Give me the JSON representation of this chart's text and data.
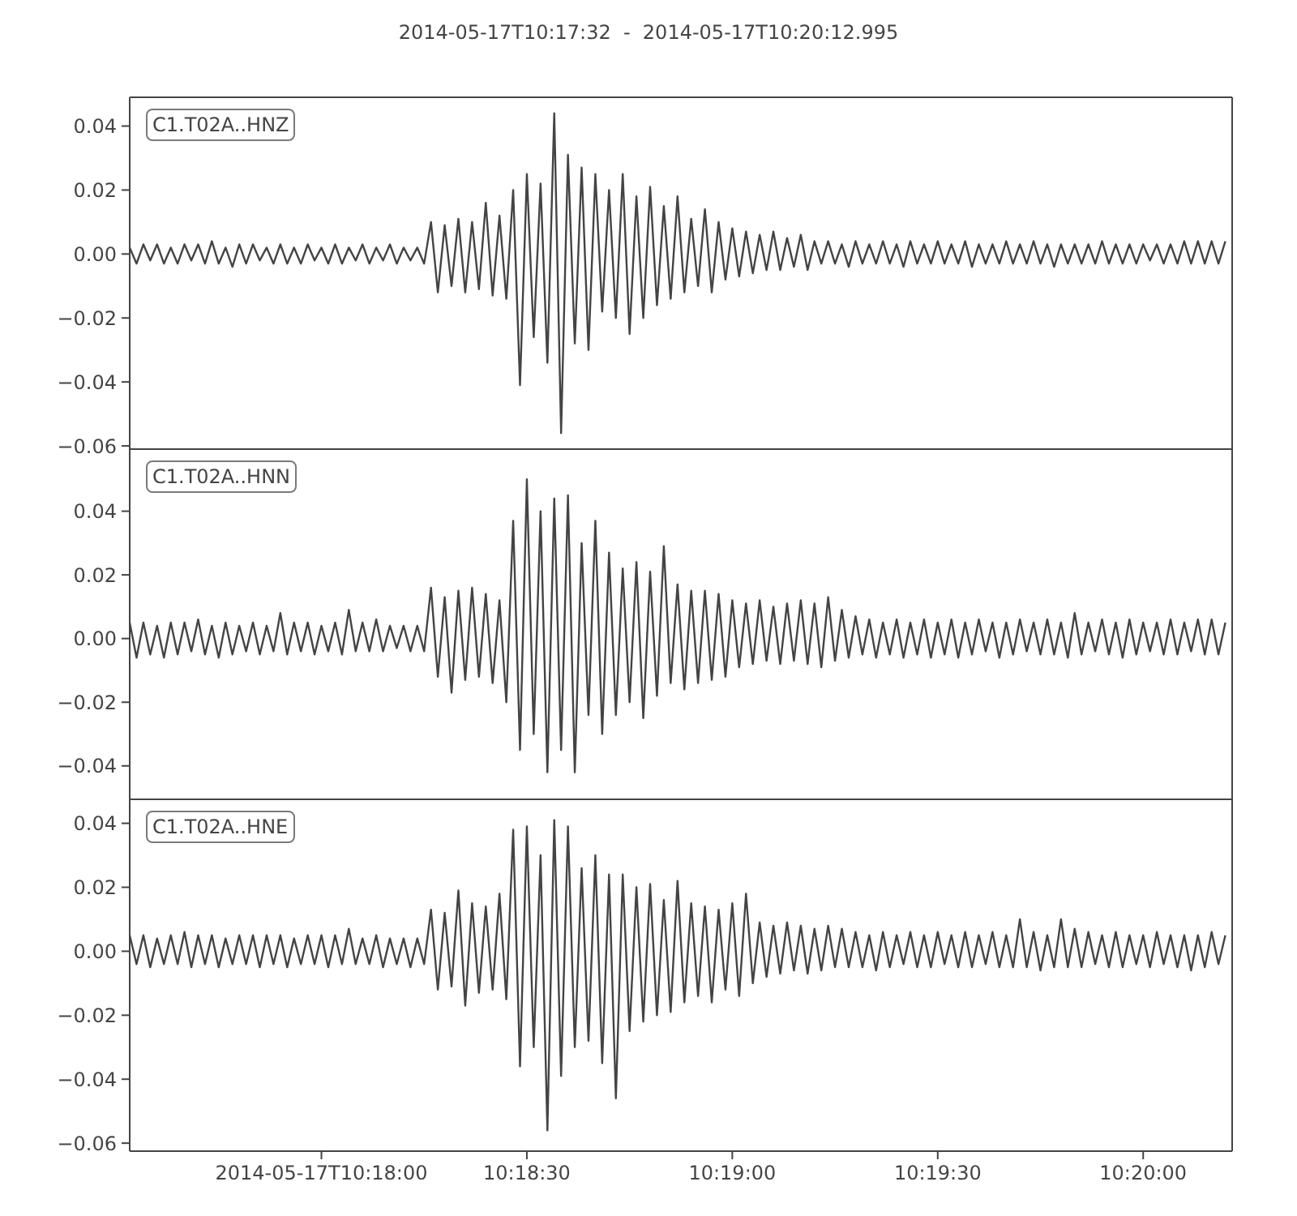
{
  "chart_data": [
    {
      "type": "line",
      "title": "2014-05-17T10:17:32  -  2014-05-17T10:20:12.995",
      "annotations": [
        "C1.T02A..HNZ"
      ],
      "color": "#444444",
      "tick_labels": "y",
      "xlim": [
        "2014-05-17T10:17:32",
        "2014-05-17T10:20:12.995"
      ],
      "ylim": [
        -0.061,
        0.049
      ],
      "yticks": [
        {
          "value": -0.06,
          "label": "−0.06"
        },
        {
          "value": -0.04,
          "label": "−0.04"
        },
        {
          "value": -0.02,
          "label": "−0.02"
        },
        {
          "value": 0,
          "label": "0.00"
        },
        {
          "value": 0.02,
          "label": "0.02"
        },
        {
          "value": 0.04,
          "label": "0.04"
        }
      ],
      "x": [
        "2014-05-17T10:17:32",
        "2014-05-17T10:17:33",
        "2014-05-17T10:17:34",
        "2014-05-17T10:17:35",
        "2014-05-17T10:17:36",
        "2014-05-17T10:17:37",
        "2014-05-17T10:17:38",
        "2014-05-17T10:17:39",
        "2014-05-17T10:17:40",
        "2014-05-17T10:17:41",
        "2014-05-17T10:17:42",
        "2014-05-17T10:17:43",
        "2014-05-17T10:17:44",
        "2014-05-17T10:17:45",
        "2014-05-17T10:17:46",
        "2014-05-17T10:17:47",
        "2014-05-17T10:17:48",
        "2014-05-17T10:17:49",
        "2014-05-17T10:17:50",
        "2014-05-17T10:17:51",
        "2014-05-17T10:17:52",
        "2014-05-17T10:17:53",
        "2014-05-17T10:17:54",
        "2014-05-17T10:17:55",
        "2014-05-17T10:17:56",
        "2014-05-17T10:17:57",
        "2014-05-17T10:17:58",
        "2014-05-17T10:17:59",
        "2014-05-17T10:18:00",
        "2014-05-17T10:18:01",
        "2014-05-17T10:18:02",
        "2014-05-17T10:18:03",
        "2014-05-17T10:18:04",
        "2014-05-17T10:18:05",
        "2014-05-17T10:18:06",
        "2014-05-17T10:18:07",
        "2014-05-17T10:18:08",
        "2014-05-17T10:18:09",
        "2014-05-17T10:18:10",
        "2014-05-17T10:18:11",
        "2014-05-17T10:18:12",
        "2014-05-17T10:18:13",
        "2014-05-17T10:18:14",
        "2014-05-17T10:18:15",
        "2014-05-17T10:18:16",
        "2014-05-17T10:18:17",
        "2014-05-17T10:18:18",
        "2014-05-17T10:18:19",
        "2014-05-17T10:18:20",
        "2014-05-17T10:18:21",
        "2014-05-17T10:18:22",
        "2014-05-17T10:18:23",
        "2014-05-17T10:18:24",
        "2014-05-17T10:18:25",
        "2014-05-17T10:18:26",
        "2014-05-17T10:18:27",
        "2014-05-17T10:18:28",
        "2014-05-17T10:18:29",
        "2014-05-17T10:18:30",
        "2014-05-17T10:18:31",
        "2014-05-17T10:18:32",
        "2014-05-17T10:18:33",
        "2014-05-17T10:18:34",
        "2014-05-17T10:18:35",
        "2014-05-17T10:18:36",
        "2014-05-17T10:18:37",
        "2014-05-17T10:18:38",
        "2014-05-17T10:18:39",
        "2014-05-17T10:18:40",
        "2014-05-17T10:18:41",
        "2014-05-17T10:18:42",
        "2014-05-17T10:18:43",
        "2014-05-17T10:18:44",
        "2014-05-17T10:18:45",
        "2014-05-17T10:18:46",
        "2014-05-17T10:18:47",
        "2014-05-17T10:18:48",
        "2014-05-17T10:18:49",
        "2014-05-17T10:18:50",
        "2014-05-17T10:18:51",
        "2014-05-17T10:18:52",
        "2014-05-17T10:18:53",
        "2014-05-17T10:18:54",
        "2014-05-17T10:18:55",
        "2014-05-17T10:18:56",
        "2014-05-17T10:18:57",
        "2014-05-17T10:18:58",
        "2014-05-17T10:18:59",
        "2014-05-17T10:19:00",
        "2014-05-17T10:19:01",
        "2014-05-17T10:19:02",
        "2014-05-17T10:19:03",
        "2014-05-17T10:19:04",
        "2014-05-17T10:19:05",
        "2014-05-17T10:19:06",
        "2014-05-17T10:19:07",
        "2014-05-17T10:19:08",
        "2014-05-17T10:19:09",
        "2014-05-17T10:19:10",
        "2014-05-17T10:19:11",
        "2014-05-17T10:19:12",
        "2014-05-17T10:19:13",
        "2014-05-17T10:19:14",
        "2014-05-17T10:19:15",
        "2014-05-17T10:19:16",
        "2014-05-17T10:19:17",
        "2014-05-17T10:19:18",
        "2014-05-17T10:19:19",
        "2014-05-17T10:19:20",
        "2014-05-17T10:19:21",
        "2014-05-17T10:19:22",
        "2014-05-17T10:19:23",
        "2014-05-17T10:19:24",
        "2014-05-17T10:19:25",
        "2014-05-17T10:19:26",
        "2014-05-17T10:19:27",
        "2014-05-17T10:19:28",
        "2014-05-17T10:19:29",
        "2014-05-17T10:19:30",
        "2014-05-17T10:19:31",
        "2014-05-17T10:19:32",
        "2014-05-17T10:19:33",
        "2014-05-17T10:19:34",
        "2014-05-17T10:19:35",
        "2014-05-17T10:19:36",
        "2014-05-17T10:19:37",
        "2014-05-17T10:19:38",
        "2014-05-17T10:19:39",
        "2014-05-17T10:19:40",
        "2014-05-17T10:19:41",
        "2014-05-17T10:19:42",
        "2014-05-17T10:19:43",
        "2014-05-17T10:19:44",
        "2014-05-17T10:19:45",
        "2014-05-17T10:19:46",
        "2014-05-17T10:19:47",
        "2014-05-17T10:19:48",
        "2014-05-17T10:19:49",
        "2014-05-17T10:19:50",
        "2014-05-17T10:19:51",
        "2014-05-17T10:19:52",
        "2014-05-17T10:19:53",
        "2014-05-17T10:19:54",
        "2014-05-17T10:19:55",
        "2014-05-17T10:19:56",
        "2014-05-17T10:19:57",
        "2014-05-17T10:19:58",
        "2014-05-17T10:19:59",
        "2014-05-17T10:20:00",
        "2014-05-17T10:20:01",
        "2014-05-17T10:20:02",
        "2014-05-17T10:20:03",
        "2014-05-17T10:20:04",
        "2014-05-17T10:20:05",
        "2014-05-17T10:20:06",
        "2014-05-17T10:20:07",
        "2014-05-17T10:20:08",
        "2014-05-17T10:20:09",
        "2014-05-17T10:20:10",
        "2014-05-17T10:20:11",
        "2014-05-17T10:20:12"
      ],
      "values": [
        0.002,
        -0.003,
        0.003,
        -0.002,
        0.003,
        -0.003,
        0.002,
        -0.003,
        0.003,
        -0.002,
        0.003,
        -0.003,
        0.004,
        -0.003,
        0.002,
        -0.004,
        0.003,
        -0.003,
        0.003,
        -0.002,
        0.002,
        -0.003,
        0.003,
        -0.003,
        0.002,
        -0.003,
        0.003,
        -0.002,
        0.002,
        -0.003,
        0.003,
        -0.003,
        0.002,
        -0.002,
        0.003,
        -0.003,
        0.002,
        -0.002,
        0.003,
        -0.003,
        0.002,
        -0.002,
        0.002,
        -0.003,
        0.01,
        -0.012,
        0.009,
        -0.01,
        0.011,
        -0.012,
        0.01,
        -0.011,
        0.016,
        -0.013,
        0.012,
        -0.014,
        0.02,
        -0.041,
        0.025,
        -0.026,
        0.022,
        -0.034,
        0.044,
        -0.056,
        0.031,
        -0.028,
        0.027,
        -0.03,
        0.025,
        -0.018,
        0.02,
        -0.02,
        0.025,
        -0.025,
        0.018,
        -0.02,
        0.021,
        -0.016,
        0.015,
        -0.014,
        0.018,
        -0.012,
        0.011,
        -0.01,
        0.014,
        -0.012,
        0.01,
        -0.008,
        0.008,
        -0.007,
        0.007,
        -0.006,
        0.006,
        -0.005,
        0.007,
        -0.005,
        0.005,
        -0.004,
        0.006,
        -0.005,
        0.004,
        -0.003,
        0.004,
        -0.003,
        0.003,
        -0.004,
        0.004,
        -0.003,
        0.003,
        -0.003,
        0.004,
        -0.003,
        0.003,
        -0.004,
        0.004,
        -0.003,
        0.003,
        -0.003,
        0.004,
        -0.003,
        0.003,
        -0.003,
        0.004,
        -0.004,
        0.003,
        -0.003,
        0.003,
        -0.003,
        0.004,
        -0.003,
        0.003,
        -0.003,
        0.004,
        -0.003,
        0.003,
        -0.004,
        0.003,
        -0.003,
        0.003,
        -0.003,
        0.003,
        -0.003,
        0.004,
        -0.003,
        0.003,
        -0.003,
        0.003,
        -0.003,
        0.003,
        -0.002,
        0.003,
        -0.003,
        0.003,
        -0.003,
        0.004,
        -0.003,
        0.004,
        -0.003,
        0.004,
        -0.003,
        0.004
      ]
    },
    {
      "type": "line",
      "annotations": [
        "C1.T02A..HNN"
      ],
      "color": "#444444",
      "tick_labels": "y",
      "xlim": [
        "2014-05-17T10:17:32",
        "2014-05-17T10:20:12.995"
      ],
      "ylim": [
        -0.0505,
        0.0595
      ],
      "yticks": [
        {
          "value": -0.04,
          "label": "−0.04"
        },
        {
          "value": -0.02,
          "label": "−0.02"
        },
        {
          "value": 0,
          "label": "0.00"
        },
        {
          "value": 0.02,
          "label": "0.02"
        },
        {
          "value": 0.04,
          "label": "0.04"
        }
      ],
      "x": [
        "2014-05-17T10:17:32",
        "2014-05-17T10:17:33",
        "2014-05-17T10:17:34",
        "2014-05-17T10:17:35",
        "2014-05-17T10:17:36",
        "2014-05-17T10:17:37",
        "2014-05-17T10:17:38",
        "2014-05-17T10:17:39",
        "2014-05-17T10:17:40",
        "2014-05-17T10:17:41",
        "2014-05-17T10:17:42",
        "2014-05-17T10:17:43",
        "2014-05-17T10:17:44",
        "2014-05-17T10:17:45",
        "2014-05-17T10:17:46",
        "2014-05-17T10:17:47",
        "2014-05-17T10:17:48",
        "2014-05-17T10:17:49",
        "2014-05-17T10:17:50",
        "2014-05-17T10:17:51",
        "2014-05-17T10:17:52",
        "2014-05-17T10:17:53",
        "2014-05-17T10:17:54",
        "2014-05-17T10:17:55",
        "2014-05-17T10:17:56",
        "2014-05-17T10:17:57",
        "2014-05-17T10:17:58",
        "2014-05-17T10:17:59",
        "2014-05-17T10:18:00",
        "2014-05-17T10:18:01",
        "2014-05-17T10:18:02",
        "2014-05-17T10:18:03",
        "2014-05-17T10:18:04",
        "2014-05-17T10:18:05",
        "2014-05-17T10:18:06",
        "2014-05-17T10:18:07",
        "2014-05-17T10:18:08",
        "2014-05-17T10:18:09",
        "2014-05-17T10:18:10",
        "2014-05-17T10:18:11",
        "2014-05-17T10:18:12",
        "2014-05-17T10:18:13",
        "2014-05-17T10:18:14",
        "2014-05-17T10:18:15",
        "2014-05-17T10:18:16",
        "2014-05-17T10:18:17",
        "2014-05-17T10:18:18",
        "2014-05-17T10:18:19",
        "2014-05-17T10:18:20",
        "2014-05-17T10:18:21",
        "2014-05-17T10:18:22",
        "2014-05-17T10:18:23",
        "2014-05-17T10:18:24",
        "2014-05-17T10:18:25",
        "2014-05-17T10:18:26",
        "2014-05-17T10:18:27",
        "2014-05-17T10:18:28",
        "2014-05-17T10:18:29",
        "2014-05-17T10:18:30",
        "2014-05-17T10:18:31",
        "2014-05-17T10:18:32",
        "2014-05-17T10:18:33",
        "2014-05-17T10:18:34",
        "2014-05-17T10:18:35",
        "2014-05-17T10:18:36",
        "2014-05-17T10:18:37",
        "2014-05-17T10:18:38",
        "2014-05-17T10:18:39",
        "2014-05-17T10:18:40",
        "2014-05-17T10:18:41",
        "2014-05-17T10:18:42",
        "2014-05-17T10:18:43",
        "2014-05-17T10:18:44",
        "2014-05-17T10:18:45",
        "2014-05-17T10:18:46",
        "2014-05-17T10:18:47",
        "2014-05-17T10:18:48",
        "2014-05-17T10:18:49",
        "2014-05-17T10:18:50",
        "2014-05-17T10:18:51",
        "2014-05-17T10:18:52",
        "2014-05-17T10:18:53",
        "2014-05-17T10:18:54",
        "2014-05-17T10:18:55",
        "2014-05-17T10:18:56",
        "2014-05-17T10:18:57",
        "2014-05-17T10:18:58",
        "2014-05-17T10:18:59",
        "2014-05-17T10:19:00",
        "2014-05-17T10:19:01",
        "2014-05-17T10:19:02",
        "2014-05-17T10:19:03",
        "2014-05-17T10:19:04",
        "2014-05-17T10:19:05",
        "2014-05-17T10:19:06",
        "2014-05-17T10:19:07",
        "2014-05-17T10:19:08",
        "2014-05-17T10:19:09",
        "2014-05-17T10:19:10",
        "2014-05-17T10:19:11",
        "2014-05-17T10:19:12",
        "2014-05-17T10:19:13",
        "2014-05-17T10:19:14",
        "2014-05-17T10:19:15",
        "2014-05-17T10:19:16",
        "2014-05-17T10:19:17",
        "2014-05-17T10:19:18",
        "2014-05-17T10:19:19",
        "2014-05-17T10:19:20",
        "2014-05-17T10:19:21",
        "2014-05-17T10:19:22",
        "2014-05-17T10:19:23",
        "2014-05-17T10:19:24",
        "2014-05-17T10:19:25",
        "2014-05-17T10:19:26",
        "2014-05-17T10:19:27",
        "2014-05-17T10:19:28",
        "2014-05-17T10:19:29",
        "2014-05-17T10:19:30",
        "2014-05-17T10:19:31",
        "2014-05-17T10:19:32",
        "2014-05-17T10:19:33",
        "2014-05-17T10:19:34",
        "2014-05-17T10:19:35",
        "2014-05-17T10:19:36",
        "2014-05-17T10:19:37",
        "2014-05-17T10:19:38",
        "2014-05-17T10:19:39",
        "2014-05-17T10:19:40",
        "2014-05-17T10:19:41",
        "2014-05-17T10:19:42",
        "2014-05-17T10:19:43",
        "2014-05-17T10:19:44",
        "2014-05-17T10:19:45",
        "2014-05-17T10:19:46",
        "2014-05-17T10:19:47",
        "2014-05-17T10:19:48",
        "2014-05-17T10:19:49",
        "2014-05-17T10:19:50",
        "2014-05-17T10:19:51",
        "2014-05-17T10:19:52",
        "2014-05-17T10:19:53",
        "2014-05-17T10:19:54",
        "2014-05-17T10:19:55",
        "2014-05-17T10:19:56",
        "2014-05-17T10:19:57",
        "2014-05-17T10:19:58",
        "2014-05-17T10:19:59",
        "2014-05-17T10:20:00",
        "2014-05-17T10:20:01",
        "2014-05-17T10:20:02",
        "2014-05-17T10:20:03",
        "2014-05-17T10:20:04",
        "2014-05-17T10:20:05",
        "2014-05-17T10:20:06",
        "2014-05-17T10:20:07",
        "2014-05-17T10:20:08",
        "2014-05-17T10:20:09",
        "2014-05-17T10:20:10",
        "2014-05-17T10:20:11",
        "2014-05-17T10:20:12"
      ],
      "values": [
        0.005,
        -0.006,
        0.005,
        -0.005,
        0.004,
        -0.006,
        0.005,
        -0.005,
        0.005,
        -0.004,
        0.006,
        -0.005,
        0.004,
        -0.006,
        0.005,
        -0.005,
        0.004,
        -0.004,
        0.005,
        -0.005,
        0.004,
        -0.004,
        0.008,
        -0.005,
        0.005,
        -0.004,
        0.005,
        -0.005,
        0.004,
        -0.004,
        0.005,
        -0.005,
        0.009,
        -0.004,
        0.005,
        -0.004,
        0.006,
        -0.004,
        0.004,
        -0.003,
        0.004,
        -0.004,
        0.004,
        -0.004,
        0.016,
        -0.012,
        0.013,
        -0.017,
        0.015,
        -0.013,
        0.016,
        -0.012,
        0.014,
        -0.014,
        0.012,
        -0.02,
        0.037,
        -0.035,
        0.05,
        -0.03,
        0.04,
        -0.042,
        0.044,
        -0.035,
        0.045,
        -0.042,
        0.03,
        -0.024,
        0.037,
        -0.03,
        0.027,
        -0.024,
        0.022,
        -0.02,
        0.024,
        -0.025,
        0.021,
        -0.018,
        0.029,
        -0.014,
        0.017,
        -0.016,
        0.015,
        -0.014,
        0.015,
        -0.013,
        0.014,
        -0.012,
        0.012,
        -0.009,
        0.011,
        -0.008,
        0.012,
        -0.007,
        0.01,
        -0.008,
        0.011,
        -0.007,
        0.012,
        -0.008,
        0.011,
        -0.009,
        0.013,
        -0.007,
        0.009,
        -0.006,
        0.007,
        -0.005,
        0.006,
        -0.006,
        0.005,
        -0.005,
        0.006,
        -0.006,
        0.005,
        -0.005,
        0.006,
        -0.006,
        0.005,
        -0.005,
        0.006,
        -0.006,
        0.005,
        -0.005,
        0.006,
        -0.004,
        0.005,
        -0.006,
        0.005,
        -0.005,
        0.006,
        -0.004,
        0.005,
        -0.005,
        0.006,
        -0.005,
        0.005,
        -0.006,
        0.008,
        -0.005,
        0.005,
        -0.004,
        0.006,
        -0.005,
        0.005,
        -0.006,
        0.006,
        -0.005,
        0.005,
        -0.004,
        0.005,
        -0.005,
        0.006,
        -0.005,
        0.005,
        -0.004,
        0.006,
        -0.005,
        0.006,
        -0.005,
        0.005
      ]
    },
    {
      "type": "line",
      "annotations": [
        "C1.T02A..HNE"
      ],
      "color": "#444444",
      "xlim": [
        "2014-05-17T10:17:32",
        "2014-05-17T10:20:12.995"
      ],
      "ylim": [
        -0.0625,
        0.0475
      ],
      "xticks": [
        {
          "value": "2014-05-17T10:18:00",
          "label": "2014-05-17T10:18:00"
        },
        {
          "value": "2014-05-17T10:18:30",
          "label": "10:18:30"
        },
        {
          "value": "2014-05-17T10:19:00",
          "label": "10:19:00"
        },
        {
          "value": "2014-05-17T10:19:30",
          "label": "10:19:30"
        },
        {
          "value": "2014-05-17T10:20:00",
          "label": "10:20:00"
        }
      ],
      "yticks": [
        {
          "value": -0.06,
          "label": "−0.06"
        },
        {
          "value": -0.04,
          "label": "−0.04"
        },
        {
          "value": -0.02,
          "label": "−0.02"
        },
        {
          "value": 0,
          "label": "0.00"
        },
        {
          "value": 0.02,
          "label": "0.02"
        },
        {
          "value": 0.04,
          "label": "0.04"
        }
      ],
      "x": [
        "2014-05-17T10:17:32",
        "2014-05-17T10:17:33",
        "2014-05-17T10:17:34",
        "2014-05-17T10:17:35",
        "2014-05-17T10:17:36",
        "2014-05-17T10:17:37",
        "2014-05-17T10:17:38",
        "2014-05-17T10:17:39",
        "2014-05-17T10:17:40",
        "2014-05-17T10:17:41",
        "2014-05-17T10:17:42",
        "2014-05-17T10:17:43",
        "2014-05-17T10:17:44",
        "2014-05-17T10:17:45",
        "2014-05-17T10:17:46",
        "2014-05-17T10:17:47",
        "2014-05-17T10:17:48",
        "2014-05-17T10:17:49",
        "2014-05-17T10:17:50",
        "2014-05-17T10:17:51",
        "2014-05-17T10:17:52",
        "2014-05-17T10:17:53",
        "2014-05-17T10:17:54",
        "2014-05-17T10:17:55",
        "2014-05-17T10:17:56",
        "2014-05-17T10:17:57",
        "2014-05-17T10:17:58",
        "2014-05-17T10:17:59",
        "2014-05-17T10:18:00",
        "2014-05-17T10:18:01",
        "2014-05-17T10:18:02",
        "2014-05-17T10:18:03",
        "2014-05-17T10:18:04",
        "2014-05-17T10:18:05",
        "2014-05-17T10:18:06",
        "2014-05-17T10:18:07",
        "2014-05-17T10:18:08",
        "2014-05-17T10:18:09",
        "2014-05-17T10:18:10",
        "2014-05-17T10:18:11",
        "2014-05-17T10:18:12",
        "2014-05-17T10:18:13",
        "2014-05-17T10:18:14",
        "2014-05-17T10:18:15",
        "2014-05-17T10:18:16",
        "2014-05-17T10:18:17",
        "2014-05-17T10:18:18",
        "2014-05-17T10:18:19",
        "2014-05-17T10:18:20",
        "2014-05-17T10:18:21",
        "2014-05-17T10:18:22",
        "2014-05-17T10:18:23",
        "2014-05-17T10:18:24",
        "2014-05-17T10:18:25",
        "2014-05-17T10:18:26",
        "2014-05-17T10:18:27",
        "2014-05-17T10:18:28",
        "2014-05-17T10:18:29",
        "2014-05-17T10:18:30",
        "2014-05-17T10:18:31",
        "2014-05-17T10:18:32",
        "2014-05-17T10:18:33",
        "2014-05-17T10:18:34",
        "2014-05-17T10:18:35",
        "2014-05-17T10:18:36",
        "2014-05-17T10:18:37",
        "2014-05-17T10:18:38",
        "2014-05-17T10:18:39",
        "2014-05-17T10:18:40",
        "2014-05-17T10:18:41",
        "2014-05-17T10:18:42",
        "2014-05-17T10:18:43",
        "2014-05-17T10:18:44",
        "2014-05-17T10:18:45",
        "2014-05-17T10:18:46",
        "2014-05-17T10:18:47",
        "2014-05-17T10:18:48",
        "2014-05-17T10:18:49",
        "2014-05-17T10:18:50",
        "2014-05-17T10:18:51",
        "2014-05-17T10:18:52",
        "2014-05-17T10:18:53",
        "2014-05-17T10:18:54",
        "2014-05-17T10:18:55",
        "2014-05-17T10:18:56",
        "2014-05-17T10:18:57",
        "2014-05-17T10:18:58",
        "2014-05-17T10:18:59",
        "2014-05-17T10:19:00",
        "2014-05-17T10:19:01",
        "2014-05-17T10:19:02",
        "2014-05-17T10:19:03",
        "2014-05-17T10:19:04",
        "2014-05-17T10:19:05",
        "2014-05-17T10:19:06",
        "2014-05-17T10:19:07",
        "2014-05-17T10:19:08",
        "2014-05-17T10:19:09",
        "2014-05-17T10:19:10",
        "2014-05-17T10:19:11",
        "2014-05-17T10:19:12",
        "2014-05-17T10:19:13",
        "2014-05-17T10:19:14",
        "2014-05-17T10:19:15",
        "2014-05-17T10:19:16",
        "2014-05-17T10:19:17",
        "2014-05-17T10:19:18",
        "2014-05-17T10:19:19",
        "2014-05-17T10:19:20",
        "2014-05-17T10:19:21",
        "2014-05-17T10:19:22",
        "2014-05-17T10:19:23",
        "2014-05-17T10:19:24",
        "2014-05-17T10:19:25",
        "2014-05-17T10:19:26",
        "2014-05-17T10:19:27",
        "2014-05-17T10:19:28",
        "2014-05-17T10:19:29",
        "2014-05-17T10:19:30",
        "2014-05-17T10:19:31",
        "2014-05-17T10:19:32",
        "2014-05-17T10:19:33",
        "2014-05-17T10:19:34",
        "2014-05-17T10:19:35",
        "2014-05-17T10:19:36",
        "2014-05-17T10:19:37",
        "2014-05-17T10:19:38",
        "2014-05-17T10:19:39",
        "2014-05-17T10:19:40",
        "2014-05-17T10:19:41",
        "2014-05-17T10:19:42",
        "2014-05-17T10:19:43",
        "2014-05-17T10:19:44",
        "2014-05-17T10:19:45",
        "2014-05-17T10:19:46",
        "2014-05-17T10:19:47",
        "2014-05-17T10:19:48",
        "2014-05-17T10:19:49",
        "2014-05-17T10:19:50",
        "2014-05-17T10:19:51",
        "2014-05-17T10:19:52",
        "2014-05-17T10:19:53",
        "2014-05-17T10:19:54",
        "2014-05-17T10:19:55",
        "2014-05-17T10:19:56",
        "2014-05-17T10:19:57",
        "2014-05-17T10:19:58",
        "2014-05-17T10:19:59",
        "2014-05-17T10:20:00",
        "2014-05-17T10:20:01",
        "2014-05-17T10:20:02",
        "2014-05-17T10:20:03",
        "2014-05-17T10:20:04",
        "2014-05-17T10:20:05",
        "2014-05-17T10:20:06",
        "2014-05-17T10:20:07",
        "2014-05-17T10:20:08",
        "2014-05-17T10:20:09",
        "2014-05-17T10:20:10",
        "2014-05-17T10:20:11",
        "2014-05-17T10:20:12"
      ],
      "values": [
        0.005,
        -0.004,
        0.005,
        -0.005,
        0.004,
        -0.004,
        0.005,
        -0.004,
        0.006,
        -0.005,
        0.005,
        -0.004,
        0.005,
        -0.005,
        0.004,
        -0.004,
        0.005,
        -0.004,
        0.005,
        -0.005,
        0.005,
        -0.004,
        0.005,
        -0.005,
        0.004,
        -0.004,
        0.005,
        -0.004,
        0.005,
        -0.005,
        0.005,
        -0.004,
        0.007,
        -0.004,
        0.004,
        -0.004,
        0.005,
        -0.005,
        0.004,
        -0.004,
        0.004,
        -0.005,
        0.004,
        -0.004,
        0.013,
        -0.012,
        0.012,
        -0.011,
        0.019,
        -0.017,
        0.015,
        -0.013,
        0.014,
        -0.012,
        0.018,
        -0.015,
        0.038,
        -0.036,
        0.039,
        -0.03,
        0.03,
        -0.056,
        0.041,
        -0.039,
        0.039,
        -0.03,
        0.026,
        -0.028,
        0.03,
        -0.035,
        0.024,
        -0.046,
        0.024,
        -0.025,
        0.02,
        -0.022,
        0.021,
        -0.02,
        0.016,
        -0.019,
        0.022,
        -0.016,
        0.015,
        -0.014,
        0.014,
        -0.016,
        0.013,
        -0.012,
        0.015,
        -0.014,
        0.018,
        -0.01,
        0.009,
        -0.008,
        0.008,
        -0.007,
        0.009,
        -0.006,
        0.008,
        -0.007,
        0.007,
        -0.006,
        0.008,
        -0.005,
        0.007,
        -0.005,
        0.006,
        -0.005,
        0.005,
        -0.006,
        0.006,
        -0.005,
        0.005,
        -0.004,
        0.006,
        -0.005,
        0.005,
        -0.005,
        0.006,
        -0.004,
        0.005,
        -0.005,
        0.006,
        -0.005,
        0.005,
        -0.004,
        0.006,
        -0.005,
        0.005,
        -0.005,
        0.01,
        -0.005,
        0.006,
        -0.006,
        0.005,
        -0.005,
        0.01,
        -0.005,
        0.007,
        -0.005,
        0.006,
        -0.004,
        0.005,
        -0.005,
        0.006,
        -0.005,
        0.005,
        -0.004,
        0.005,
        -0.005,
        0.006,
        -0.004,
        0.005,
        -0.005,
        0.005,
        -0.006,
        0.005,
        -0.005,
        0.006,
        -0.004,
        0.005
      ]
    }
  ]
}
